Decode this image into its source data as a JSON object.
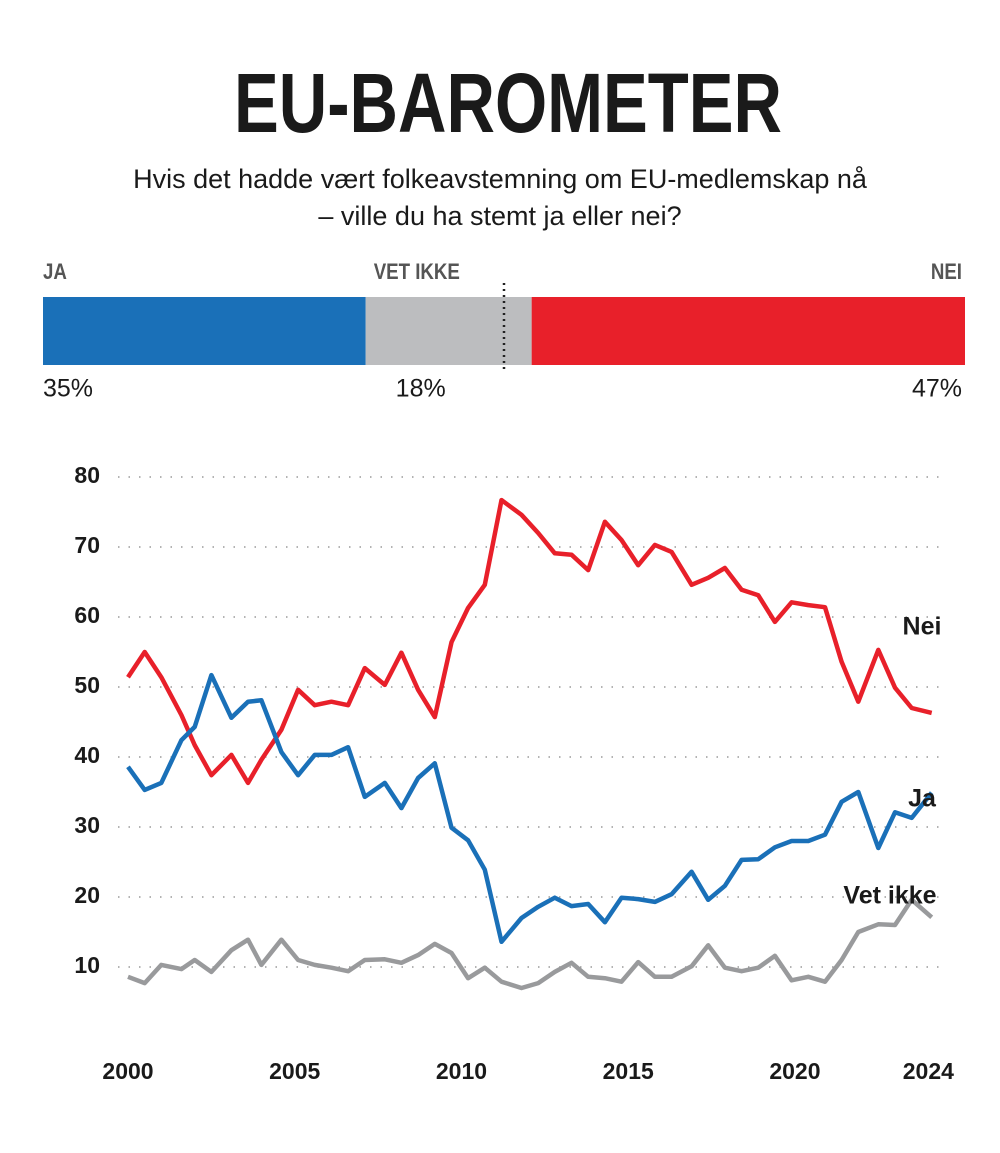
{
  "chart_data": [
    {
      "type": "stacked-bar",
      "title": "EU-BAROMETER",
      "subtitle": [
        "Hvis det hadde vært folkeavstemning om EU-medlemskap nå",
        "– ville du ha stemt ja eller nei?"
      ],
      "xlim": [
        0,
        100
      ],
      "marker": 50,
      "series": [
        {
          "name": "JA",
          "color": "#1a70b8",
          "values": [
            35
          ],
          "value_labels": [
            "35%"
          ]
        },
        {
          "name": "VET IKKE",
          "color": "#bcbdbf",
          "values": [
            18
          ],
          "value_labels": [
            "18%"
          ]
        },
        {
          "name": "NEI",
          "color": "#e8202a",
          "values": [
            47
          ],
          "value_labels": [
            "47%"
          ]
        }
      ]
    },
    {
      "type": "line",
      "x": [
        2000,
        2000.5,
        2001,
        2001.6,
        2002,
        2002.5,
        2003.1,
        2003.6,
        2004,
        2004.6,
        2005.1,
        2005.6,
        2006.1,
        2006.6,
        2007.1,
        2007.7,
        2008.2,
        2008.7,
        2009.2,
        2009.7,
        2010.2,
        2010.7,
        2011.2,
        2011.8,
        2012.3,
        2012.8,
        2013.3,
        2013.8,
        2014.3,
        2014.8,
        2015.3,
        2015.8,
        2016.3,
        2016.9,
        2017.4,
        2017.9,
        2018.4,
        2018.9,
        2019.4,
        2019.9,
        2020.4,
        2020.9,
        2021.4,
        2021.9,
        2022.5,
        2023,
        2023.5,
        2024.1
      ],
      "xlim": [
        2000,
        2024.5
      ],
      "xticks": [
        2000,
        2005,
        2010,
        2015,
        2020,
        2024
      ],
      "ylim": [
        0,
        80
      ],
      "yticks": [
        10,
        20,
        30,
        40,
        50,
        60,
        70,
        80
      ],
      "grid": true,
      "series": [
        {
          "name": "Nei",
          "color": "#e8202a",
          "values": [
            51.4,
            55,
            51.4,
            46,
            41.7,
            37.4,
            40.3,
            36.3,
            39.6,
            43.9,
            49.6,
            47.4,
            47.9,
            47.4,
            52.7,
            50.3,
            54.9,
            49.6,
            45.7,
            56.4,
            61.3,
            64.6,
            76.7,
            74.6,
            72,
            69.1,
            68.9,
            66.7,
            73.6,
            71,
            67.4,
            70.3,
            69.3,
            64.6,
            65.6,
            67,
            63.9,
            63.1,
            59.3,
            62.1,
            61.7,
            61.4,
            53.6,
            47.9,
            55.3,
            49.9,
            47,
            46.3
          ]
        },
        {
          "name": "Ja",
          "color": "#1a70b8",
          "values": [
            38.6,
            35.3,
            36.3,
            42.4,
            44.3,
            51.7,
            45.6,
            47.9,
            48.1,
            40.7,
            37.4,
            40.3,
            40.3,
            41.4,
            34.3,
            36.3,
            32.7,
            37,
            39.1,
            29.9,
            28.1,
            23.9,
            13.6,
            17,
            18.6,
            19.9,
            18.7,
            19,
            16.4,
            19.9,
            19.7,
            19.3,
            20.4,
            23.6,
            19.6,
            21.6,
            25.3,
            25.4,
            27.1,
            28,
            28,
            28.9,
            33.6,
            35,
            27,
            32.1,
            31.3,
            34.9
          ]
        },
        {
          "name": "Vet ikke",
          "color": "#999a9c",
          "values": [
            8.6,
            7.7,
            10.3,
            9.7,
            11,
            9.3,
            12.4,
            13.9,
            10.3,
            13.9,
            11,
            10.3,
            9.9,
            9.4,
            11,
            11.1,
            10.6,
            11.7,
            13.3,
            12,
            8.4,
            9.9,
            7.9,
            7,
            7.7,
            9.3,
            10.6,
            8.6,
            8.4,
            7.9,
            10.7,
            8.6,
            8.6,
            10.1,
            13.1,
            9.9,
            9.4,
            9.9,
            11.6,
            8.1,
            8.6,
            7.9,
            11,
            15,
            16.1,
            16,
            19.6,
            17.1
          ]
        }
      ]
    }
  ]
}
